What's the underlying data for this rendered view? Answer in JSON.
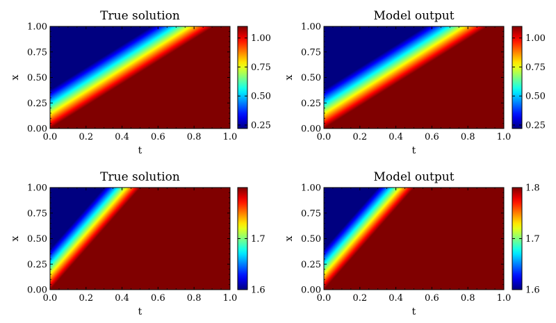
{
  "chart_data": [
    {
      "type": "heatmap",
      "title": "True solution",
      "xlabel": "t",
      "ylabel": "x",
      "xlim": [
        0,
        1
      ],
      "ylim": [
        0,
        1
      ],
      "xticks": [
        "0.0",
        "0.2",
        "0.4",
        "0.6",
        "0.8",
        "1.0"
      ],
      "yticks": [
        "0.00",
        "0.25",
        "0.50",
        "0.75",
        "1.00"
      ],
      "colormap": "jet",
      "clim": [
        0.22,
        1.1
      ],
      "colorbar_ticks": [
        "0.25",
        "0.50",
        "0.75",
        "1.00"
      ],
      "field": {
        "u_left": 0.22,
        "u_right": 1.1,
        "front_speed": 1.1,
        "front_width": 0.38
      }
    },
    {
      "type": "heatmap",
      "title": "Model output",
      "xlabel": "t",
      "ylabel": "x",
      "xlim": [
        0,
        1
      ],
      "ylim": [
        0,
        1
      ],
      "xticks": [
        "0.0",
        "0.2",
        "0.4",
        "0.6",
        "0.8",
        "1.0"
      ],
      "yticks": [
        "0.00",
        "0.25",
        "0.50",
        "0.75",
        "1.00"
      ],
      "colormap": "jet",
      "clim": [
        0.22,
        1.1
      ],
      "colorbar_ticks": [
        "0.25",
        "0.50",
        "0.75",
        "1.00"
      ],
      "field": {
        "u_left": 0.22,
        "u_right": 1.1,
        "front_speed": 1.1,
        "front_width": 0.38
      }
    },
    {
      "type": "heatmap",
      "title": "True solution",
      "xlabel": "t",
      "ylabel": "x",
      "xlim": [
        0,
        1
      ],
      "ylim": [
        0,
        1
      ],
      "xticks": [
        "0.0",
        "0.2",
        "0.4",
        "0.6",
        "0.8",
        "1.0"
      ],
      "yticks": [
        "0.00",
        "0.25",
        "0.50",
        "0.75",
        "1.00"
      ],
      "colormap": "jet",
      "clim": [
        1.6,
        1.8
      ],
      "colorbar_ticks": [
        "1.6",
        "1.7"
      ],
      "field": {
        "u_left": 1.6,
        "u_right": 1.8,
        "front_speed": 2.0,
        "front_width": 0.4
      }
    },
    {
      "type": "heatmap",
      "title": "Model output",
      "xlabel": "t",
      "ylabel": "x",
      "xlim": [
        0,
        1
      ],
      "ylim": [
        0,
        1
      ],
      "xticks": [
        "0.0",
        "0.2",
        "0.4",
        "0.6",
        "0.8",
        "1.0"
      ],
      "yticks": [
        "0.00",
        "0.25",
        "0.50",
        "0.75",
        "1.00"
      ],
      "colormap": "jet",
      "clim": [
        1.6,
        1.8
      ],
      "colorbar_ticks": [
        "1.6",
        "1.7",
        "1.8"
      ],
      "field": {
        "u_left": 1.6,
        "u_right": 1.8,
        "front_speed": 2.0,
        "front_width": 0.4
      }
    }
  ]
}
